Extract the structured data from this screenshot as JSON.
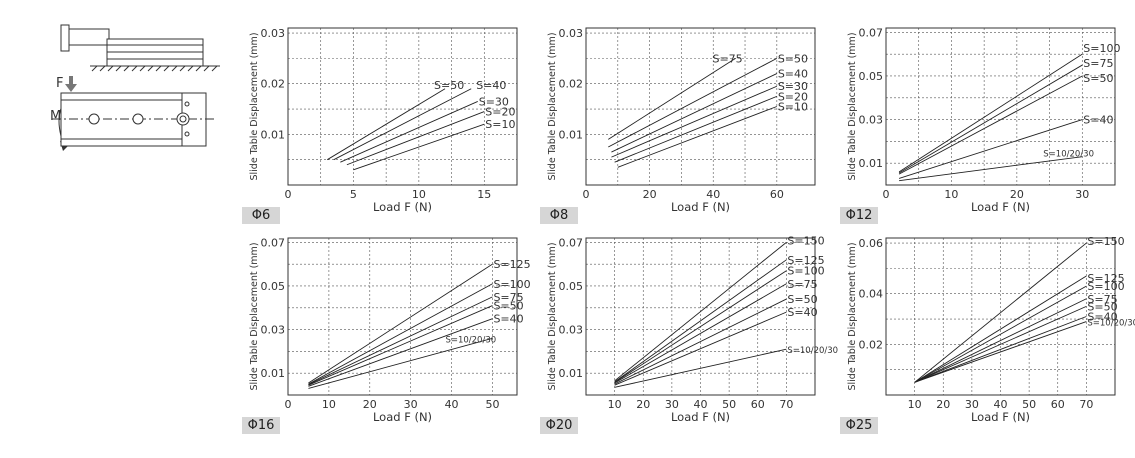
{
  "illustration": {
    "force_label": "F",
    "moment_label": "My"
  },
  "charts": [
    {
      "label": "Φ6",
      "xlim": [
        0,
        17.5
      ],
      "ylim": [
        0,
        0.031
      ],
      "xticks": [
        0,
        5,
        10,
        15
      ],
      "yticks": [
        0.01,
        0.02,
        0.03
      ],
      "ytick_labels": [
        "0.01",
        "0.02",
        "0.03"
      ],
      "xgrid": [
        2.5,
        5,
        7.5,
        10,
        12.5,
        15
      ],
      "ygrid": [
        0.005,
        0.01,
        0.015,
        0.02,
        0.025,
        0.03
      ]
    },
    {
      "label": "Φ8",
      "xlim": [
        0,
        72
      ],
      "ylim": [
        0,
        0.031
      ],
      "xticks": [
        0,
        20,
        40,
        60
      ],
      "yticks": [
        0.01,
        0.02,
        0.03
      ],
      "ytick_labels": [
        "0.01",
        "0.02",
        "0.03"
      ],
      "xgrid": [
        10,
        20,
        30,
        40,
        50,
        60
      ],
      "ygrid": [
        0.005,
        0.01,
        0.015,
        0.02,
        0.025,
        0.03
      ]
    },
    {
      "label": "Φ12",
      "xlim": [
        0,
        35
      ],
      "ylim": [
        0,
        0.072
      ],
      "xticks": [
        0,
        10,
        20,
        30
      ],
      "yticks": [
        0.01,
        0.03,
        0.05,
        0.07
      ],
      "ytick_labels": [
        "0.01",
        "0.03",
        "0.05",
        "0.07"
      ],
      "xgrid": [
        5,
        10,
        15,
        20,
        25,
        30
      ],
      "ygrid": [
        0.01,
        0.02,
        0.03,
        0.04,
        0.05,
        0.06,
        0.07
      ]
    },
    {
      "label": "Φ16",
      "xlim": [
        0,
        56
      ],
      "ylim": [
        0,
        0.072
      ],
      "xticks": [
        0,
        10,
        20,
        30,
        40,
        50
      ],
      "yticks": [
        0.01,
        0.03,
        0.05,
        0.07
      ],
      "ytick_labels": [
        "0.01",
        "0.03",
        "0.05",
        "0.07"
      ],
      "xgrid": [
        10,
        20,
        30,
        40,
        50
      ],
      "ygrid": [
        0.01,
        0.02,
        0.03,
        0.04,
        0.05,
        0.06,
        0.07
      ]
    },
    {
      "label": "Φ20",
      "xlim": [
        0,
        80
      ],
      "ylim": [
        0,
        0.072
      ],
      "xticks": [
        10,
        20,
        30,
        40,
        50,
        60,
        70
      ],
      "yticks": [
        0.01,
        0.03,
        0.05,
        0.07
      ],
      "ytick_labels": [
        "0.01",
        "0.03",
        "0.05",
        "0.07"
      ],
      "xgrid": [
        10,
        20,
        30,
        40,
        50,
        60,
        70
      ],
      "ygrid": [
        0.01,
        0.02,
        0.03,
        0.04,
        0.05,
        0.06,
        0.07
      ]
    },
    {
      "label": "Φ25",
      "xlim": [
        0,
        80
      ],
      "ylim": [
        0,
        0.062
      ],
      "xticks": [
        10,
        20,
        30,
        40,
        50,
        60,
        70
      ],
      "yticks": [
        0.02,
        0.04,
        0.06
      ],
      "ytick_labels": [
        "0.02",
        "0.04",
        "0.06"
      ],
      "xgrid": [
        10,
        20,
        30,
        40,
        50,
        60,
        70
      ],
      "ygrid": [
        0.01,
        0.02,
        0.03,
        0.04,
        0.05,
        0.06
      ]
    }
  ],
  "chart_data": [
    {
      "type": "line",
      "title": "Φ6",
      "xlabel": "Load F (N)",
      "ylabel": "Slide Table Displacement (mm)",
      "xlim": [
        0,
        17.5
      ],
      "ylim": [
        0,
        0.031
      ],
      "grid": true,
      "series": [
        {
          "name": "S=50",
          "x": [
            3,
            12
          ],
          "y": [
            0.005,
            0.019
          ]
        },
        {
          "name": "S=40",
          "x": [
            3.5,
            14
          ],
          "y": [
            0.005,
            0.019
          ]
        },
        {
          "name": "S=30",
          "x": [
            4,
            14.5
          ],
          "y": [
            0.0045,
            0.0165
          ]
        },
        {
          "name": "S=20",
          "x": [
            4.5,
            15
          ],
          "y": [
            0.004,
            0.0145
          ]
        },
        {
          "name": "S=10",
          "x": [
            5,
            15
          ],
          "y": [
            0.003,
            0.012
          ]
        }
      ]
    },
    {
      "type": "line",
      "title": "Φ8",
      "xlabel": "Load F (N)",
      "ylabel": "Slide Table Displacement (mm)",
      "xlim": [
        0,
        72
      ],
      "ylim": [
        0,
        0.031
      ],
      "grid": true,
      "series": [
        {
          "name": "S=75",
          "x": [
            7,
            47
          ],
          "y": [
            0.009,
            0.025
          ]
        },
        {
          "name": "S=50",
          "x": [
            7,
            60
          ],
          "y": [
            0.0075,
            0.025
          ]
        },
        {
          "name": "S=40",
          "x": [
            8,
            60
          ],
          "y": [
            0.0065,
            0.022
          ]
        },
        {
          "name": "S=30",
          "x": [
            8,
            60
          ],
          "y": [
            0.0055,
            0.0195
          ]
        },
        {
          "name": "S=20",
          "x": [
            9,
            60
          ],
          "y": [
            0.0045,
            0.0175
          ]
        },
        {
          "name": "S=10",
          "x": [
            10,
            60
          ],
          "y": [
            0.0035,
            0.0155
          ]
        }
      ]
    },
    {
      "type": "line",
      "title": "Φ12",
      "xlabel": "Load F (N)",
      "ylabel": "Slide Table Displacement (mm)",
      "xlim": [
        0,
        35
      ],
      "ylim": [
        0,
        0.072
      ],
      "grid": true,
      "series": [
        {
          "name": "S=100",
          "x": [
            2,
            30
          ],
          "y": [
            0.006,
            0.06
          ]
        },
        {
          "name": "S=75",
          "x": [
            2,
            30
          ],
          "y": [
            0.0055,
            0.055
          ]
        },
        {
          "name": "S=50",
          "x": [
            2,
            30
          ],
          "y": [
            0.005,
            0.05
          ]
        },
        {
          "name": "S=40",
          "x": [
            2,
            30
          ],
          "y": [
            0.003,
            0.03
          ]
        },
        {
          "name": "S=10/20/30",
          "x": [
            2,
            30
          ],
          "y": [
            0.002,
            0.013
          ]
        }
      ]
    },
    {
      "type": "line",
      "title": "Φ16",
      "xlabel": "Load F (N)",
      "ylabel": "Slide Table Displacement (mm)",
      "xlim": [
        0,
        56
      ],
      "ylim": [
        0,
        0.072
      ],
      "grid": true,
      "series": [
        {
          "name": "S=125",
          "x": [
            5,
            50
          ],
          "y": [
            0.0055,
            0.06
          ]
        },
        {
          "name": "S=100",
          "x": [
            5,
            50
          ],
          "y": [
            0.005,
            0.051
          ]
        },
        {
          "name": "S=75",
          "x": [
            5,
            50
          ],
          "y": [
            0.0048,
            0.045
          ]
        },
        {
          "name": "S=50",
          "x": [
            5,
            50
          ],
          "y": [
            0.0045,
            0.041
          ]
        },
        {
          "name": "S=40",
          "x": [
            5,
            50
          ],
          "y": [
            0.004,
            0.035
          ]
        },
        {
          "name": "S=10/20/30",
          "x": [
            5,
            50
          ],
          "y": [
            0.003,
            0.026
          ]
        }
      ]
    },
    {
      "type": "line",
      "title": "Φ20",
      "xlabel": "Load F (N)",
      "ylabel": "Slide Table Displacement (mm)",
      "xlim": [
        0,
        80
      ],
      "ylim": [
        0,
        0.072
      ],
      "grid": true,
      "series": [
        {
          "name": "S=150",
          "x": [
            10,
            70
          ],
          "y": [
            0.0065,
            0.07
          ]
        },
        {
          "name": "S=125",
          "x": [
            10,
            70
          ],
          "y": [
            0.006,
            0.062
          ]
        },
        {
          "name": "S=100",
          "x": [
            10,
            70
          ],
          "y": [
            0.0058,
            0.057
          ]
        },
        {
          "name": "S=75",
          "x": [
            10,
            70
          ],
          "y": [
            0.0055,
            0.051
          ]
        },
        {
          "name": "S=50",
          "x": [
            10,
            70
          ],
          "y": [
            0.005,
            0.044
          ]
        },
        {
          "name": "S=40",
          "x": [
            10,
            70
          ],
          "y": [
            0.0045,
            0.038
          ]
        },
        {
          "name": "S=10/20/30",
          "x": [
            10,
            70
          ],
          "y": [
            0.0035,
            0.021
          ]
        }
      ]
    },
    {
      "type": "line",
      "title": "Φ25",
      "xlabel": "Load F (N)",
      "ylabel": "Slide Table Displacement (mm)",
      "xlim": [
        0,
        80
      ],
      "ylim": [
        0,
        0.062
      ],
      "grid": true,
      "series": [
        {
          "name": "S=150",
          "x": [
            10,
            70
          ],
          "y": [
            0.005,
            0.06
          ]
        },
        {
          "name": "S=125",
          "x": [
            10,
            70
          ],
          "y": [
            0.005,
            0.047
          ]
        },
        {
          "name": "S=100",
          "x": [
            10,
            70
          ],
          "y": [
            0.005,
            0.043
          ]
        },
        {
          "name": "S=75",
          "x": [
            10,
            70
          ],
          "y": [
            0.005,
            0.038
          ]
        },
        {
          "name": "S=50",
          "x": [
            10,
            70
          ],
          "y": [
            0.005,
            0.035
          ]
        },
        {
          "name": "S=40",
          "x": [
            10,
            70
          ],
          "y": [
            0.005,
            0.031
          ]
        },
        {
          "name": "S=10/20/30",
          "x": [
            10,
            70
          ],
          "y": [
            0.005,
            0.029
          ]
        }
      ]
    }
  ]
}
